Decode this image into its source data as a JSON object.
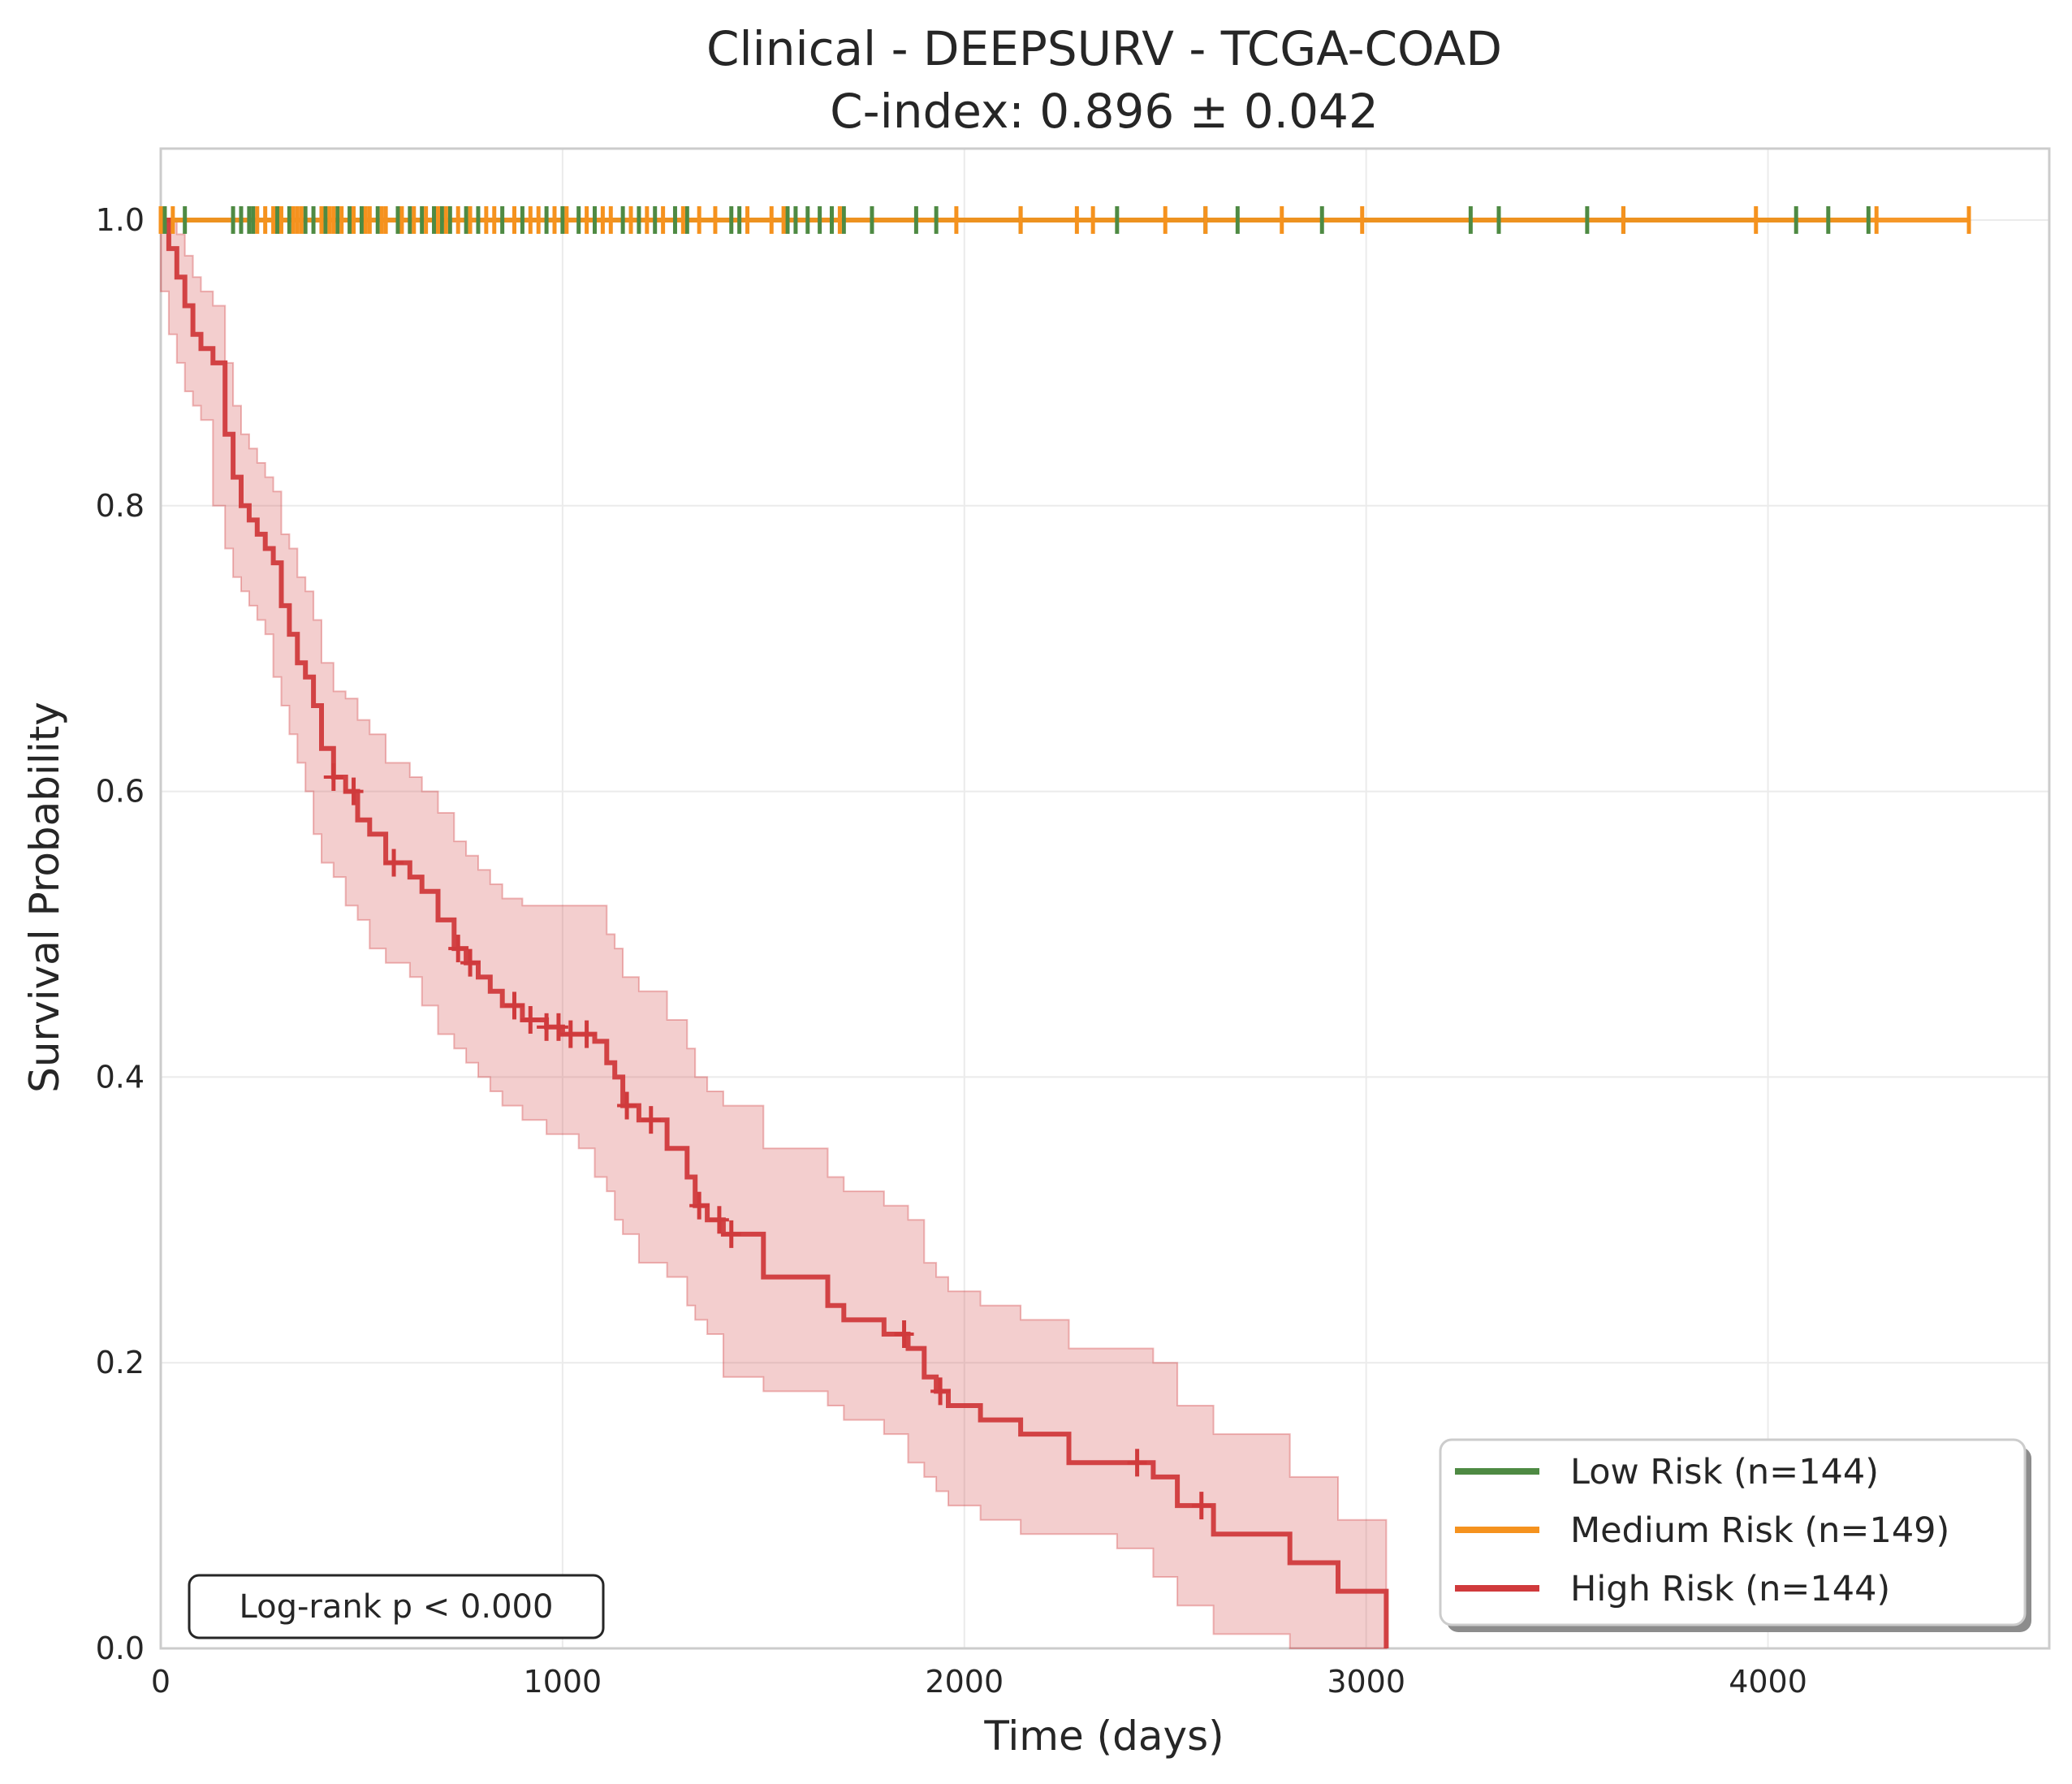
{
  "chart_data": {
    "type": "line",
    "title": "Clinical - DEEPSURV - TCGA-COAD",
    "subtitle": "C-index: 0.896 ± 0.042",
    "xlabel": "Time (days)",
    "ylabel": "Survival Probability",
    "xlim": [
      0,
      4700
    ],
    "ylim": [
      0,
      1.05
    ],
    "xticks": [
      0,
      1000,
      2000,
      3000,
      4000
    ],
    "xtick_labels": [
      "0",
      "1000",
      "2000",
      "3000",
      "4000"
    ],
    "yticks": [
      0,
      0.2,
      0.4,
      0.6,
      0.8,
      1.0
    ],
    "ytick_labels": [
      "0.0",
      "0.2",
      "0.4",
      "0.6",
      "0.8",
      "1.0"
    ],
    "grid": true,
    "legend_position": "lower-right",
    "annotation": "Log-rank p < 0.000",
    "series": [
      {
        "name": "Low Risk (n=144)",
        "color": "#4e8a43",
        "x": [
          0,
          4250
        ],
        "y": [
          1.0,
          1.0
        ],
        "censor_times": [
          10,
          60,
          180,
          200,
          220,
          230,
          290,
          320,
          360,
          380,
          410,
          440,
          470,
          500,
          540,
          590,
          620,
          650,
          680,
          700,
          720,
          760,
          790,
          850,
          900,
          960,
          1000,
          1040,
          1080,
          1150,
          1190,
          1230,
          1280,
          1310,
          1420,
          1440,
          1560,
          1580,
          1610,
          1640,
          1670,
          1700,
          1770,
          1880,
          1930,
          2140,
          2380,
          2600,
          2680,
          2890,
          3260,
          3330,
          3550,
          3640,
          4070,
          4150,
          4250
        ]
      },
      {
        "name": "Medium Risk (n=149)",
        "color": "#f5921e",
        "x": [
          0,
          4500
        ],
        "y": [
          1.0,
          1.0
        ],
        "censor_times": [
          0,
          30,
          240,
          260,
          280,
          300,
          330,
          340,
          350,
          400,
          420,
          430,
          450,
          480,
          510,
          520,
          550,
          560,
          600,
          630,
          660,
          690,
          710,
          740,
          770,
          810,
          830,
          880,
          920,
          940,
          980,
          1010,
          1060,
          1100,
          1120,
          1170,
          1210,
          1250,
          1300,
          1340,
          1380,
          1460,
          1520,
          1550,
          1690,
          1980,
          2140,
          2280,
          2320,
          2500,
          2600,
          2790,
          2990,
          3640,
          3970,
          4270,
          4500
        ]
      },
      {
        "name": "High Risk (n=144)",
        "color": "#d03a3c",
        "x": [
          0,
          20,
          40,
          60,
          80,
          100,
          130,
          160,
          180,
          200,
          220,
          240,
          260,
          280,
          300,
          320,
          340,
          360,
          380,
          400,
          430,
          460,
          490,
          520,
          560,
          620,
          650,
          690,
          730,
          760,
          790,
          820,
          850,
          900,
          960,
          1000,
          1040,
          1080,
          1110,
          1130,
          1150,
          1190,
          1260,
          1310,
          1330,
          1360,
          1400,
          1500,
          1660,
          1700,
          1800,
          1860,
          1900,
          1930,
          1960,
          2040,
          2140,
          2260,
          2380,
          2470,
          2530,
          2620,
          2810,
          2930,
          3050
        ],
        "y": [
          1.0,
          0.98,
          0.96,
          0.94,
          0.92,
          0.91,
          0.9,
          0.85,
          0.82,
          0.8,
          0.79,
          0.78,
          0.77,
          0.76,
          0.73,
          0.71,
          0.69,
          0.68,
          0.66,
          0.63,
          0.61,
          0.6,
          0.58,
          0.57,
          0.55,
          0.54,
          0.53,
          0.51,
          0.49,
          0.48,
          0.47,
          0.46,
          0.45,
          0.44,
          0.435,
          0.43,
          0.43,
          0.425,
          0.41,
          0.4,
          0.38,
          0.37,
          0.35,
          0.33,
          0.31,
          0.3,
          0.29,
          0.26,
          0.24,
          0.23,
          0.22,
          0.21,
          0.19,
          0.18,
          0.17,
          0.16,
          0.15,
          0.13,
          0.13,
          0.12,
          0.1,
          0.08,
          0.06,
          0.04,
          0.0
        ],
        "censor_times": [
          430,
          480,
          580,
          740,
          770,
          880,
          920,
          960,
          990,
          1020,
          1060,
          1160,
          1220,
          1340,
          1390,
          1420,
          1850,
          1940,
          2430,
          2590
        ],
        "ci_upper": [
          1.0,
          1.0,
          0.99,
          0.975,
          0.96,
          0.95,
          0.94,
          0.9,
          0.87,
          0.85,
          0.84,
          0.83,
          0.82,
          0.81,
          0.78,
          0.77,
          0.75,
          0.74,
          0.72,
          0.69,
          0.67,
          0.665,
          0.65,
          0.64,
          0.62,
          0.61,
          0.6,
          0.585,
          0.565,
          0.555,
          0.545,
          0.535,
          0.525,
          0.52,
          0.52,
          0.52,
          0.52,
          0.52,
          0.5,
          0.49,
          0.47,
          0.46,
          0.44,
          0.42,
          0.4,
          0.39,
          0.38,
          0.35,
          0.33,
          0.32,
          0.31,
          0.3,
          0.27,
          0.26,
          0.25,
          0.24,
          0.23,
          0.21,
          0.21,
          0.2,
          0.17,
          0.15,
          0.12,
          0.09,
          0.09
        ],
        "ci_lower": [
          0.99,
          0.95,
          0.92,
          0.9,
          0.88,
          0.87,
          0.86,
          0.8,
          0.77,
          0.75,
          0.74,
          0.73,
          0.72,
          0.71,
          0.68,
          0.66,
          0.64,
          0.62,
          0.6,
          0.57,
          0.55,
          0.54,
          0.52,
          0.51,
          0.49,
          0.48,
          0.47,
          0.45,
          0.43,
          0.42,
          0.41,
          0.4,
          0.39,
          0.38,
          0.37,
          0.36,
          0.36,
          0.35,
          0.33,
          0.32,
          0.3,
          0.29,
          0.27,
          0.26,
          0.24,
          0.23,
          0.22,
          0.19,
          0.18,
          0.17,
          0.16,
          0.15,
          0.13,
          0.12,
          0.11,
          0.1,
          0.09,
          0.08,
          0.08,
          0.07,
          0.05,
          0.03,
          0.01,
          0.0,
          0.0
        ]
      }
    ]
  }
}
